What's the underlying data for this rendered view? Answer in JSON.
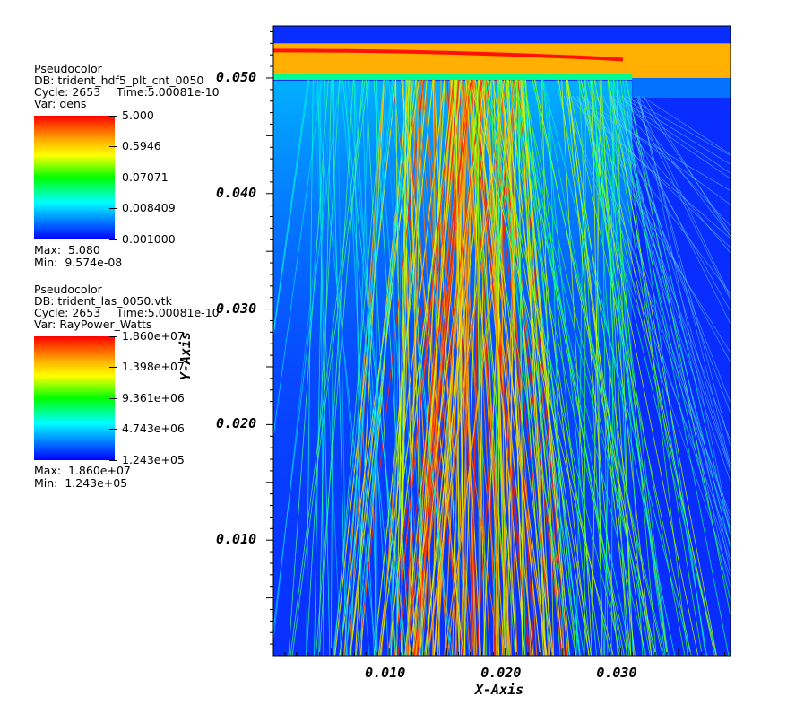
{
  "legends": [
    {
      "plot_type": "Pseudocolor",
      "db": "DB: trident_hdf5_plt_cnt_0050",
      "cycle": "Cycle: 2653",
      "time": "Time:5.00081e-10",
      "var": "Var: dens",
      "ticks": [
        "5.000",
        "0.5946",
        "0.07071",
        "0.008409",
        "0.001000"
      ],
      "max": "Max:  5.080",
      "min": "Min:  9.574e-08"
    },
    {
      "plot_type": "Pseudocolor",
      "db": "DB: trident_las_0050.vtk",
      "cycle": "Cycle: 2653",
      "time": "Time:5.00081e-10",
      "var": "Var: RayPower_Watts",
      "ticks": [
        "1.860e+07",
        "1.398e+07",
        "9.361e+06",
        "4.743e+06",
        "1.243e+05"
      ],
      "max": "Max:  1.860e+07",
      "min": "Min:  1.243e+05"
    }
  ],
  "chart_data": {
    "type": "heatmap",
    "description_overlay": "ray traces",
    "xlabel": "X-Axis",
    "ylabel": "Y-Axis",
    "xlim": [
      0.0,
      0.0395
    ],
    "ylim": [
      0.0,
      0.0545
    ],
    "x_ticks": [
      "0.010",
      "0.020",
      "0.030"
    ],
    "y_ticks": [
      "0.010",
      "0.020",
      "0.030",
      "0.040",
      "0.050"
    ],
    "x_tick_values": [
      0.01,
      0.02,
      0.03
    ],
    "y_tick_values": [
      0.01,
      0.02,
      0.03,
      0.04,
      0.05
    ],
    "background_color": "#0a2dff",
    "target_top": 0.053,
    "target_bottom": 0.05,
    "target_edge_x": 0.031,
    "colormap": [
      "#0000ff",
      "#00bfff",
      "#00ff80",
      "#c8ff00",
      "#ffb000",
      "#ff0000"
    ],
    "ray_bundles": [
      {
        "center": 0.014,
        "spread": 0.0045,
        "power": "high"
      },
      {
        "center": 0.0185,
        "spread": 0.003,
        "power": "high"
      },
      {
        "center": 0.0235,
        "spread": 0.007,
        "power": "mid"
      },
      {
        "center": 0.008,
        "spread": 0.005,
        "power": "low"
      }
    ]
  }
}
